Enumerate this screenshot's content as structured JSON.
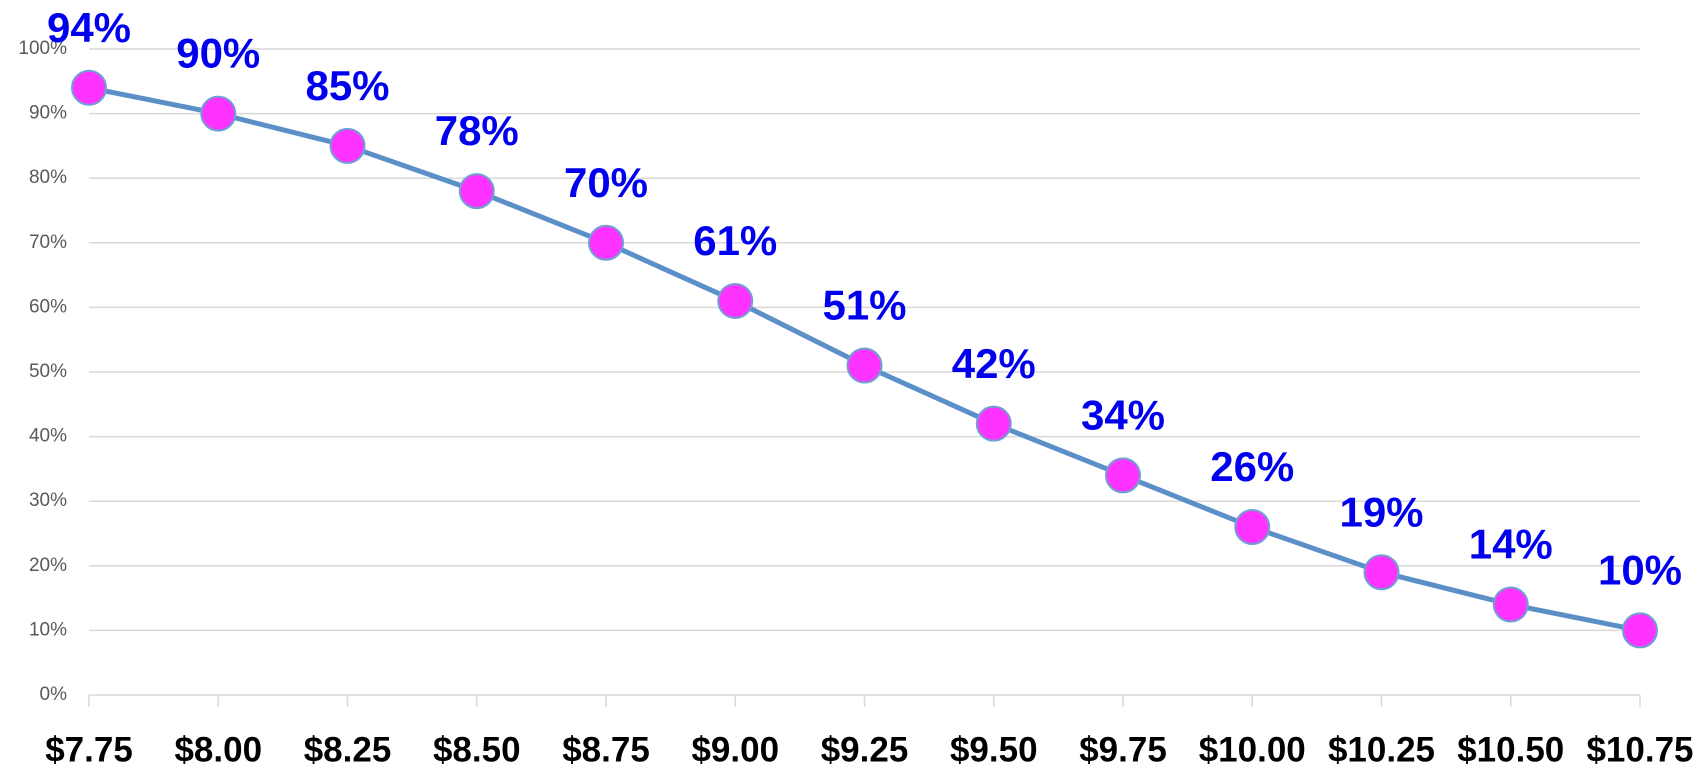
{
  "chart_data": {
    "type": "line",
    "categories": [
      "$7.75",
      "$8.00",
      "$8.25",
      "$8.50",
      "$8.75",
      "$9.00",
      "$9.25",
      "$9.50",
      "$9.75",
      "$10.00",
      "$10.25",
      "$10.50",
      "$10.75"
    ],
    "series": [
      {
        "name": null,
        "color": "#5b8fc7",
        "marker_color": "#ff33ff",
        "values": [
          94,
          90,
          85,
          78,
          70,
          61,
          51,
          42,
          34,
          26,
          19,
          14,
          10
        ],
        "value_labels": [
          "94%",
          "90%",
          "85%",
          "78%",
          "70%",
          "61%",
          "51%",
          "42%",
          "34%",
          "26%",
          "19%",
          "14%",
          "10%"
        ]
      }
    ],
    "ylim": [
      0,
      100
    ],
    "yticks": [
      {
        "value": 0,
        "label": "0%"
      },
      {
        "value": 10,
        "label": "10%"
      },
      {
        "value": 20,
        "label": "20%"
      },
      {
        "value": 30,
        "label": "30%"
      },
      {
        "value": 40,
        "label": "40%"
      },
      {
        "value": 50,
        "label": "50%"
      },
      {
        "value": 60,
        "label": "60%"
      },
      {
        "value": 70,
        "label": "70%"
      },
      {
        "value": 80,
        "label": "80%"
      },
      {
        "value": 90,
        "label": "90%"
      },
      {
        "value": 100,
        "label": "100%"
      }
    ],
    "grid": true
  }
}
